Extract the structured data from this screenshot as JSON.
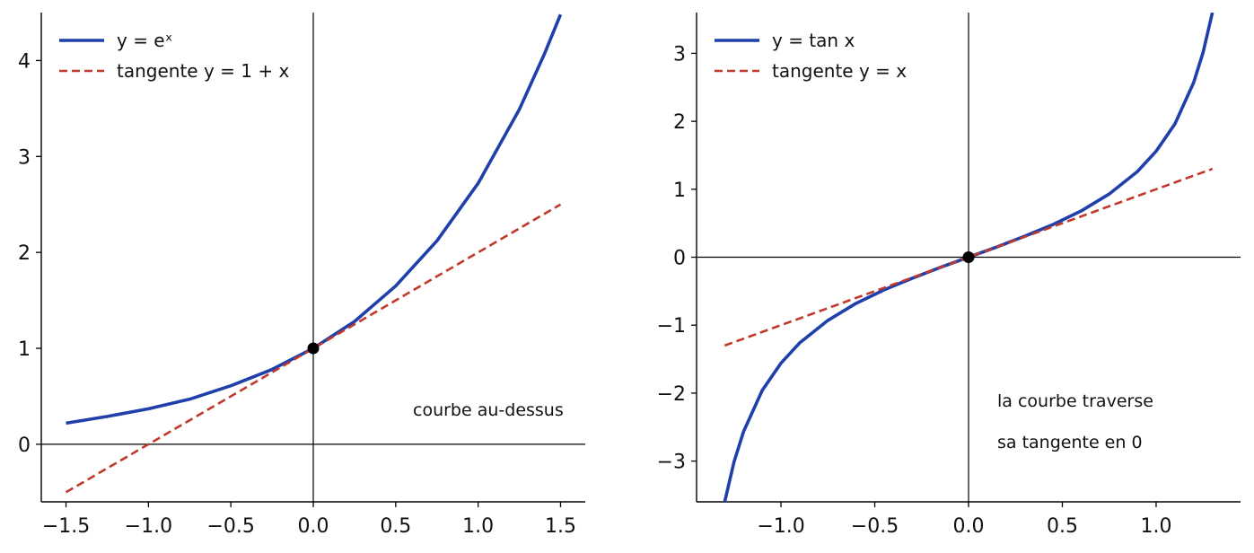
{
  "colors": {
    "curve": "#1f3fab",
    "tangent": "#c0392b",
    "axis": "#000000",
    "point": "#000000"
  },
  "chart_data": [
    {
      "type": "line",
      "title": "",
      "xlabel": "",
      "ylabel": "",
      "xlim": [
        -1.65,
        1.65
      ],
      "ylim": [
        -0.6,
        4.5
      ],
      "xticks": [
        -1.5,
        -1.0,
        -0.5,
        0.0,
        0.5,
        1.0,
        1.5
      ],
      "xtick_labels": [
        "−1.5",
        "−1.0",
        "−0.5",
        "0.0",
        "0.5",
        "1.0",
        "1.5"
      ],
      "yticks": [
        0,
        1,
        2,
        3,
        4
      ],
      "ytick_labels": [
        "0",
        "1",
        "2",
        "3",
        "4"
      ],
      "grid": false,
      "legend_position": "top-left",
      "series": [
        {
          "name": "y = e^x",
          "legend_label": "y = eˣ",
          "style": "solid",
          "x": [
            -1.5,
            -1.25,
            -1.0,
            -0.75,
            -0.5,
            -0.25,
            0.0,
            0.25,
            0.5,
            0.75,
            1.0,
            1.25,
            1.4,
            1.5
          ],
          "y": [
            0.22,
            0.29,
            0.37,
            0.47,
            0.61,
            0.78,
            1.0,
            1.28,
            1.65,
            2.12,
            2.72,
            3.49,
            4.06,
            4.48
          ]
        },
        {
          "name": "tangente y = 1 + x",
          "legend_label": "tangente y = 1 + x",
          "style": "dashed",
          "x": [
            -1.5,
            1.5
          ],
          "y": [
            -0.5,
            2.5
          ]
        }
      ],
      "point": {
        "x": 0.0,
        "y": 1.0
      },
      "annotations": [
        "courbe au-dessus"
      ]
    },
    {
      "type": "line",
      "title": "",
      "xlabel": "",
      "ylabel": "",
      "xlim": [
        -1.45,
        1.45
      ],
      "ylim": [
        -3.6,
        3.6
      ],
      "xticks": [
        -1.0,
        -0.5,
        0.0,
        0.5,
        1.0
      ],
      "xtick_labels": [
        "−1.0",
        "−0.5",
        "0.0",
        "0.5",
        "1.0"
      ],
      "yticks": [
        -3,
        -2,
        -1,
        0,
        1,
        2,
        3
      ],
      "ytick_labels": [
        "−3",
        "−2",
        "−1",
        "0",
        "1",
        "2",
        "3"
      ],
      "grid": false,
      "legend_position": "top-left",
      "series": [
        {
          "name": "y = tan x",
          "legend_label": "y = tan x",
          "style": "solid",
          "x": [
            -1.3,
            -1.25,
            -1.2,
            -1.1,
            -1.0,
            -0.9,
            -0.75,
            -0.6,
            -0.45,
            -0.3,
            -0.15,
            0.0,
            0.15,
            0.3,
            0.45,
            0.6,
            0.75,
            0.9,
            1.0,
            1.1,
            1.2,
            1.25,
            1.3
          ],
          "y": [
            -3.6,
            -3.01,
            -2.57,
            -1.96,
            -1.56,
            -1.26,
            -0.93,
            -0.68,
            -0.48,
            -0.31,
            -0.15,
            0.0,
            0.15,
            0.31,
            0.48,
            0.68,
            0.93,
            1.26,
            1.56,
            1.96,
            2.57,
            3.01,
            3.6
          ]
        },
        {
          "name": "tangente y = x",
          "legend_label": "tangente y = x",
          "style": "dashed",
          "x": [
            -1.3,
            1.3
          ],
          "y": [
            -1.3,
            1.3
          ]
        }
      ],
      "point": {
        "x": 0.0,
        "y": 0.0
      },
      "annotations": [
        "la courbe traverse",
        "sa tangente en 0"
      ]
    }
  ]
}
